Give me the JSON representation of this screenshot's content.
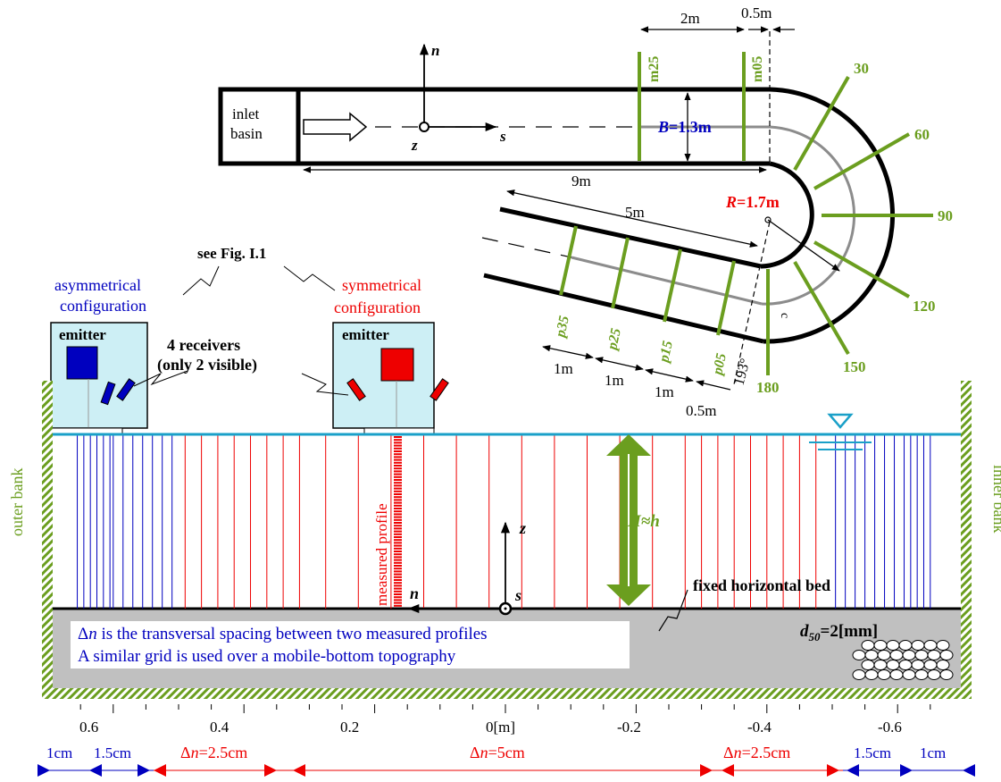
{
  "colors": {
    "channel": "#000000",
    "section_green": "#6b9e1f",
    "centerline_gray": "#8c8c8c",
    "asym_blue": "#0000bf",
    "sym_red": "#ee0000",
    "water_line": "#1aa0c8",
    "bed_fill": "#c0c0c0",
    "bank_hatch": "#6b9e1f"
  },
  "planform": {
    "inlet_label_1": "inlet",
    "inlet_label_2": "basin",
    "axis_n": "n",
    "axis_s": "s",
    "axis_z": "z",
    "dim_2m": "2m",
    "dim_05m_top": "0.5m",
    "dim_9m": "9m",
    "dim_5m": "5m",
    "width_var": "B",
    "width_val": "=1.3m",
    "radius_var": "R",
    "radius_val": "=1.7m",
    "sections_straight": [
      "m25",
      "m05"
    ],
    "sections_bend": [
      "30",
      "60",
      "90",
      "120",
      "150",
      "180"
    ],
    "sections_outlet": [
      "p35",
      "p25",
      "p15",
      "p05"
    ],
    "dim_1m_a": "1m",
    "dim_1m_b": "1m",
    "dim_1m_c": "1m",
    "dim_05m_bottom": "0.5m",
    "angle_label": "193°",
    "c_label": "c"
  },
  "configurations": {
    "see_fig": "see Fig. I.1",
    "asym_line1": "asymmetrical",
    "asym_line2": "configuration",
    "sym_line1": "symmetrical",
    "sym_line2": "configuration",
    "emitter_left": "emitter",
    "emitter_right": "emitter",
    "receivers_line1": "4 receivers",
    "receivers_line2": "(only 2 visible)"
  },
  "cross_section": {
    "outer_bank": "outer bank",
    "inner_bank": "inner bank",
    "measured_profile": "measured profile",
    "depth_var": "H≈h",
    "axis_z": "z",
    "axis_n": "n",
    "axis_s": "s",
    "bed_label": "fixed horizontal bed",
    "d50_var": "d",
    "d50_sub": "50",
    "d50_val": "=2[mm]",
    "note_delta": "Δ",
    "note_n": "n",
    "note_line1_rest": " is the transversal spacing between two measured profiles",
    "note_line2": "A similar grid is used over a mobile-bottom topography"
  },
  "axis": {
    "ticks": [
      "0.6",
      "0.4",
      "0.2",
      "0[m]",
      "-0.2",
      "-0.4",
      "-0.6"
    ]
  },
  "spacing": {
    "blue_1cm_left": "1cm",
    "blue_15cm_left": "1.5cm",
    "red_25_left": "=2.5cm",
    "red_5": "=5cm",
    "red_25_right": "=2.5cm",
    "blue_15cm_right": "1.5cm",
    "blue_1cm_right": "1cm",
    "delta_sym": "Δ",
    "n_sym": "n"
  }
}
